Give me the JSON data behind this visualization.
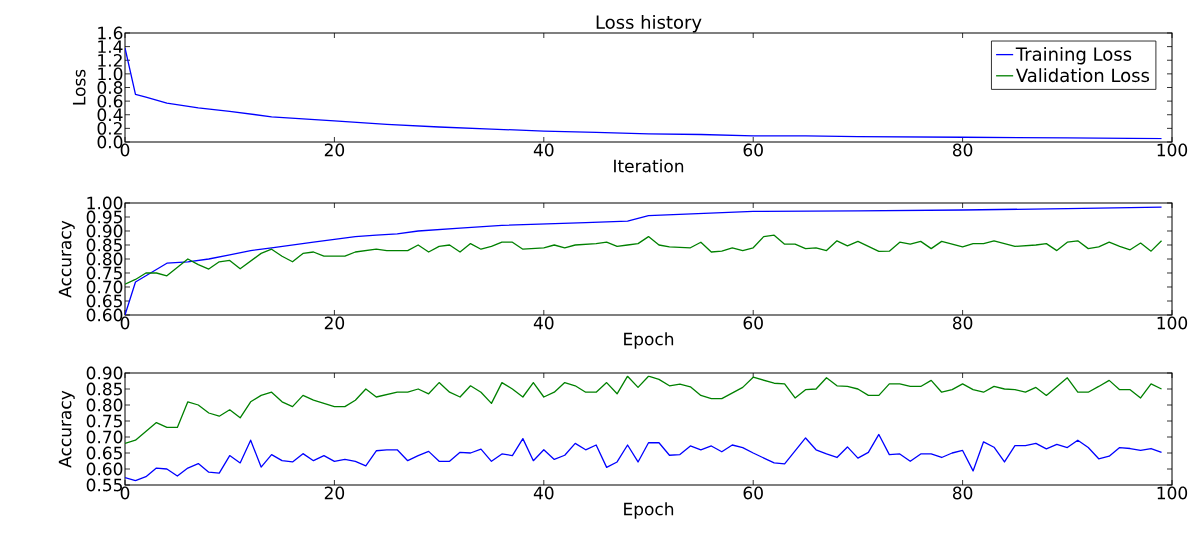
{
  "chart_data": [
    {
      "type": "line",
      "title": "Loss history",
      "xlabel": "Iteration",
      "ylabel": "Loss",
      "xlim": [
        0,
        100
      ],
      "ylim": [
        0,
        1.6
      ],
      "xticks": [
        0,
        20,
        40,
        60,
        80,
        100
      ],
      "yticks": [
        {
          "value": 0,
          "label": "0.0"
        },
        {
          "value": 0.2,
          "label": "0.2"
        },
        {
          "value": 0.4,
          "label": "0.4"
        },
        {
          "value": 0.6,
          "label": "0.6"
        },
        {
          "value": 0.8,
          "label": "0.8"
        },
        {
          "value": 1.0,
          "label": "1.0"
        },
        {
          "value": 1.2,
          "label": "1.2"
        },
        {
          "value": 1.4,
          "label": "1.4"
        },
        {
          "value": 1.6,
          "label": "1.6"
        }
      ],
      "legend": "top right",
      "series": [
        {
          "name": "Training Loss",
          "color": "#0000ff",
          "x": [
            0,
            1,
            2,
            4,
            7,
            10,
            14,
            20,
            25,
            30,
            35,
            40,
            45,
            50,
            55,
            60,
            65,
            70,
            80,
            90,
            99
          ],
          "values": [
            1.38,
            0.7,
            0.66,
            0.57,
            0.5,
            0.45,
            0.37,
            0.31,
            0.26,
            0.22,
            0.19,
            0.16,
            0.14,
            0.12,
            0.11,
            0.09,
            0.09,
            0.08,
            0.07,
            0.06,
            0.05
          ]
        },
        {
          "name": "Validation Loss",
          "color": "#008000"
        }
      ]
    },
    {
      "type": "line",
      "xlabel": "Epoch",
      "ylabel": "Accuracy",
      "xlim": [
        0,
        100
      ],
      "ylim": [
        0.6,
        1.0
      ],
      "xticks": [
        0,
        20,
        40,
        60,
        80,
        100
      ],
      "yticks": [
        {
          "value": 0.6,
          "label": "0.60"
        },
        {
          "value": 0.65,
          "label": "0.65"
        },
        {
          "value": 0.7,
          "label": "0.70"
        },
        {
          "value": 0.75,
          "label": "0.75"
        },
        {
          "value": 0.8,
          "label": "0.80"
        },
        {
          "value": 0.85,
          "label": "0.85"
        },
        {
          "value": 0.9,
          "label": "0.90"
        },
        {
          "value": 0.95,
          "label": "0.95"
        },
        {
          "value": 1.0,
          "label": "1.00"
        }
      ],
      "series": [
        {
          "color": "#0000ff",
          "x": [
            0,
            1,
            2,
            4,
            6,
            8,
            10,
            12,
            14,
            16,
            18,
            20,
            22,
            24,
            26,
            28,
            32,
            36,
            40,
            44,
            48,
            50,
            60,
            70,
            80,
            90,
            99
          ],
          "values": [
            0.6,
            0.718,
            0.74,
            0.785,
            0.79,
            0.8,
            0.815,
            0.83,
            0.84,
            0.85,
            0.86,
            0.87,
            0.88,
            0.885,
            0.89,
            0.9,
            0.91,
            0.92,
            0.925,
            0.93,
            0.935,
            0.955,
            0.97,
            0.972,
            0.975,
            0.98,
            0.985
          ]
        },
        {
          "color": "#008000",
          "x": [
            0,
            1,
            2,
            3,
            4,
            6,
            7,
            8,
            9,
            10,
            11,
            13,
            14,
            15,
            16,
            17,
            18,
            19,
            21,
            22,
            24,
            25,
            27,
            28,
            29,
            30,
            31,
            32,
            33,
            34,
            35,
            36,
            37,
            38,
            40,
            41,
            42,
            43,
            45,
            46,
            47,
            48,
            49,
            50,
            51,
            52,
            54,
            55,
            56,
            57,
            58,
            59,
            60,
            61,
            62,
            63,
            64,
            65,
            66,
            67,
            68,
            69,
            70,
            72,
            73,
            74,
            75,
            76,
            77,
            78,
            80,
            81,
            82,
            83,
            85,
            87,
            88,
            89,
            90,
            91,
            92,
            93,
            94,
            95,
            96,
            97,
            98,
            99
          ],
          "values": [
            0.71,
            0.727,
            0.75,
            0.75,
            0.74,
            0.8,
            0.78,
            0.764,
            0.79,
            0.795,
            0.765,
            0.82,
            0.835,
            0.81,
            0.79,
            0.82,
            0.825,
            0.81,
            0.81,
            0.825,
            0.835,
            0.83,
            0.83,
            0.85,
            0.825,
            0.845,
            0.85,
            0.825,
            0.855,
            0.835,
            0.845,
            0.86,
            0.86,
            0.835,
            0.84,
            0.85,
            0.84,
            0.85,
            0.855,
            0.86,
            0.845,
            0.85,
            0.855,
            0.88,
            0.85,
            0.843,
            0.84,
            0.86,
            0.825,
            0.828,
            0.84,
            0.83,
            0.84,
            0.88,
            0.885,
            0.853,
            0.853,
            0.837,
            0.84,
            0.83,
            0.865,
            0.847,
            0.863,
            0.827,
            0.828,
            0.86,
            0.853,
            0.863,
            0.837,
            0.863,
            0.843,
            0.855,
            0.855,
            0.865,
            0.845,
            0.85,
            0.855,
            0.83,
            0.86,
            0.865,
            0.837,
            0.843,
            0.86,
            0.845,
            0.833,
            0.857,
            0.828,
            0.865
          ]
        }
      ]
    },
    {
      "type": "line",
      "xlabel": "Epoch",
      "ylabel": "Accuracy",
      "xlim": [
        0,
        100
      ],
      "ylim": [
        0.55,
        0.9
      ],
      "xticks": [
        0,
        20,
        40,
        60,
        80,
        100
      ],
      "yticks": [
        {
          "value": 0.55,
          "label": "0.55"
        },
        {
          "value": 0.6,
          "label": "0.60"
        },
        {
          "value": 0.65,
          "label": "0.65"
        },
        {
          "value": 0.7,
          "label": "0.70"
        },
        {
          "value": 0.75,
          "label": "0.75"
        },
        {
          "value": 0.8,
          "label": "0.80"
        },
        {
          "value": 0.85,
          "label": "0.85"
        },
        {
          "value": 0.9,
          "label": "0.90"
        }
      ],
      "series": [
        {
          "color": "#0000ff",
          "x": [
            0,
            1,
            2,
            3,
            4,
            5,
            6,
            7,
            8,
            9,
            10,
            11,
            12,
            13,
            14,
            15,
            16,
            17,
            18,
            19,
            20,
            21,
            22,
            23,
            24,
            25,
            26,
            27,
            28,
            29,
            30,
            31,
            32,
            33,
            34,
            35,
            36,
            37,
            38,
            39,
            40,
            41,
            42,
            43,
            44,
            45,
            46,
            47,
            48,
            49,
            50,
            51,
            52,
            53,
            54,
            55,
            56,
            57,
            58,
            59,
            60,
            62,
            63,
            65,
            66,
            67,
            68,
            69,
            70,
            71,
            72,
            73,
            74,
            75,
            76,
            77,
            78,
            79,
            80,
            81,
            82,
            83,
            84,
            85,
            86,
            87,
            88,
            89,
            90,
            91,
            92,
            93,
            94,
            95,
            96,
            97,
            98,
            99
          ],
          "values": [
            0.573,
            0.564,
            0.576,
            0.603,
            0.6,
            0.578,
            0.603,
            0.617,
            0.59,
            0.587,
            0.642,
            0.619,
            0.69,
            0.606,
            0.645,
            0.626,
            0.622,
            0.648,
            0.626,
            0.642,
            0.624,
            0.63,
            0.624,
            0.61,
            0.657,
            0.66,
            0.66,
            0.626,
            0.642,
            0.655,
            0.624,
            0.624,
            0.652,
            0.65,
            0.662,
            0.624,
            0.647,
            0.642,
            0.695,
            0.626,
            0.66,
            0.63,
            0.643,
            0.68,
            0.66,
            0.675,
            0.605,
            0.622,
            0.675,
            0.622,
            0.682,
            0.682,
            0.643,
            0.645,
            0.672,
            0.66,
            0.672,
            0.654,
            0.675,
            0.667,
            0.65,
            0.619,
            0.616,
            0.697,
            0.66,
            0.647,
            0.636,
            0.669,
            0.634,
            0.652,
            0.708,
            0.645,
            0.647,
            0.624,
            0.647,
            0.647,
            0.636,
            0.65,
            0.658,
            0.594,
            0.685,
            0.668,
            0.622,
            0.673,
            0.673,
            0.68,
            0.663,
            0.677,
            0.667,
            0.69,
            0.667,
            0.632,
            0.64,
            0.667,
            0.664,
            0.658,
            0.664,
            0.652
          ]
        },
        {
          "color": "#008000",
          "x": [
            0,
            1,
            3,
            4,
            5,
            6,
            7,
            8,
            9,
            10,
            11,
            12,
            13,
            14,
            15,
            16,
            17,
            18,
            20,
            21,
            22,
            23,
            24,
            26,
            27,
            28,
            29,
            30,
            31,
            32,
            33,
            34,
            35,
            36,
            37,
            38,
            39,
            40,
            41,
            42,
            43,
            44,
            45,
            46,
            47,
            48,
            49,
            50,
            51,
            52,
            53,
            54,
            55,
            56,
            57,
            59,
            60,
            62,
            63,
            64,
            65,
            66,
            67,
            68,
            69,
            70,
            71,
            72,
            73,
            74,
            75,
            76,
            77,
            78,
            79,
            80,
            81,
            82,
            83,
            84,
            85,
            86,
            87,
            88,
            90,
            91,
            92,
            93,
            94,
            95,
            96,
            97,
            98,
            99
          ],
          "values": [
            0.68,
            0.69,
            0.745,
            0.73,
            0.73,
            0.81,
            0.8,
            0.775,
            0.765,
            0.785,
            0.76,
            0.81,
            0.83,
            0.84,
            0.81,
            0.795,
            0.83,
            0.815,
            0.795,
            0.795,
            0.815,
            0.85,
            0.825,
            0.84,
            0.84,
            0.85,
            0.835,
            0.87,
            0.84,
            0.825,
            0.86,
            0.84,
            0.805,
            0.87,
            0.85,
            0.825,
            0.87,
            0.825,
            0.84,
            0.87,
            0.86,
            0.84,
            0.84,
            0.87,
            0.835,
            0.89,
            0.855,
            0.89,
            0.88,
            0.86,
            0.865,
            0.857,
            0.83,
            0.82,
            0.82,
            0.855,
            0.887,
            0.868,
            0.866,
            0.822,
            0.848,
            0.85,
            0.885,
            0.86,
            0.858,
            0.85,
            0.83,
            0.83,
            0.866,
            0.866,
            0.858,
            0.858,
            0.877,
            0.84,
            0.848,
            0.866,
            0.848,
            0.84,
            0.858,
            0.85,
            0.848,
            0.84,
            0.855,
            0.83,
            0.885,
            0.84,
            0.84,
            0.858,
            0.877,
            0.848,
            0.848,
            0.822,
            0.866,
            0.85
          ]
        }
      ]
    }
  ]
}
